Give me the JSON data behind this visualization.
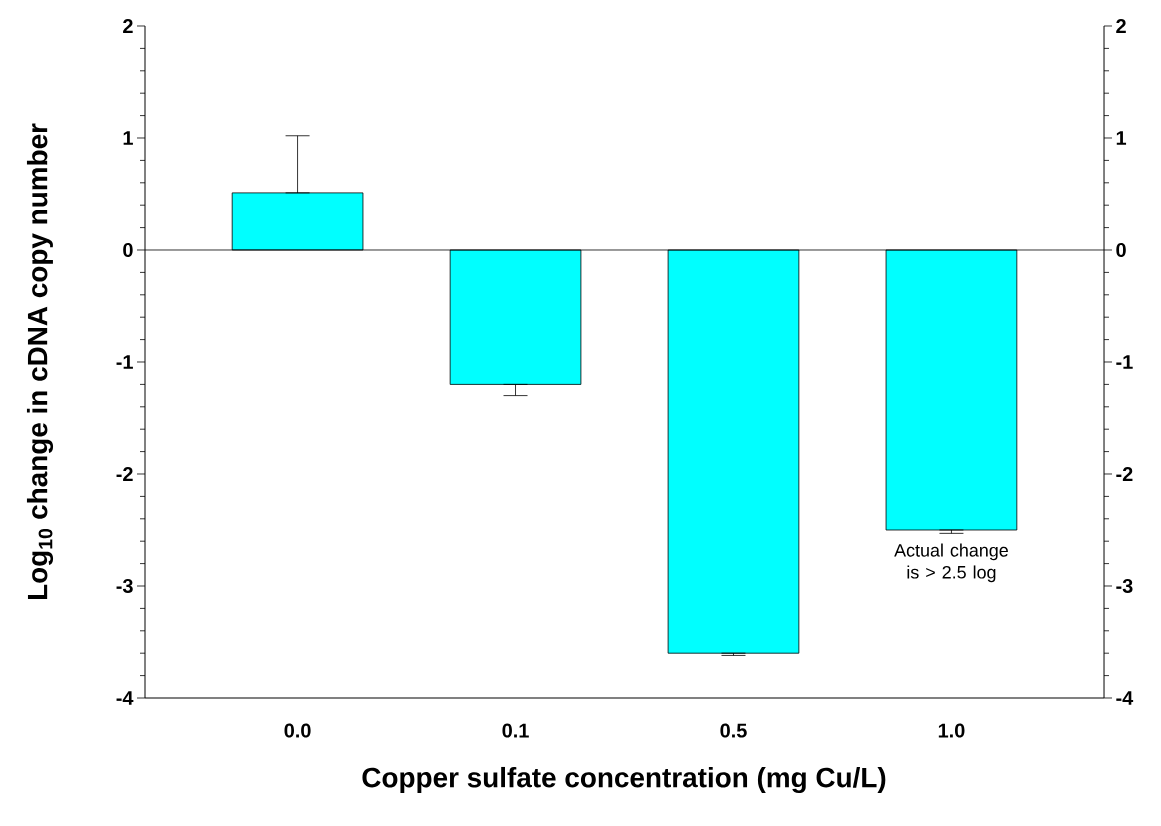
{
  "chart_data": {
    "type": "bar",
    "xlabel": "Copper sulfate concentration (mg Cu/L)",
    "ylabel": "Log$_{10}$ change in cDNA copy number",
    "categories": [
      "0.0",
      "0.1",
      "0.5",
      "1.0"
    ],
    "values": [
      0.51,
      -1.2,
      -3.6,
      -2.5
    ],
    "errors": [
      0.51,
      0.1,
      0.02,
      0.03
    ],
    "color": "#00ffff",
    "ylim": [
      -4,
      2
    ],
    "yticks": [
      -4,
      -3,
      -2,
      -1,
      0,
      1,
      2
    ],
    "y2lim": [
      -4,
      2
    ],
    "y2ticks": [
      -4,
      -3,
      -2,
      -1,
      0,
      1,
      2
    ],
    "annotations": [
      {
        "text": "Actual change is > 2.5 log",
        "x": "1.0",
        "y": -2.5
      }
    ],
    "ref_lines": [
      {
        "axis": "y",
        "value": 0,
        "color": "#000000"
      }
    ]
  }
}
